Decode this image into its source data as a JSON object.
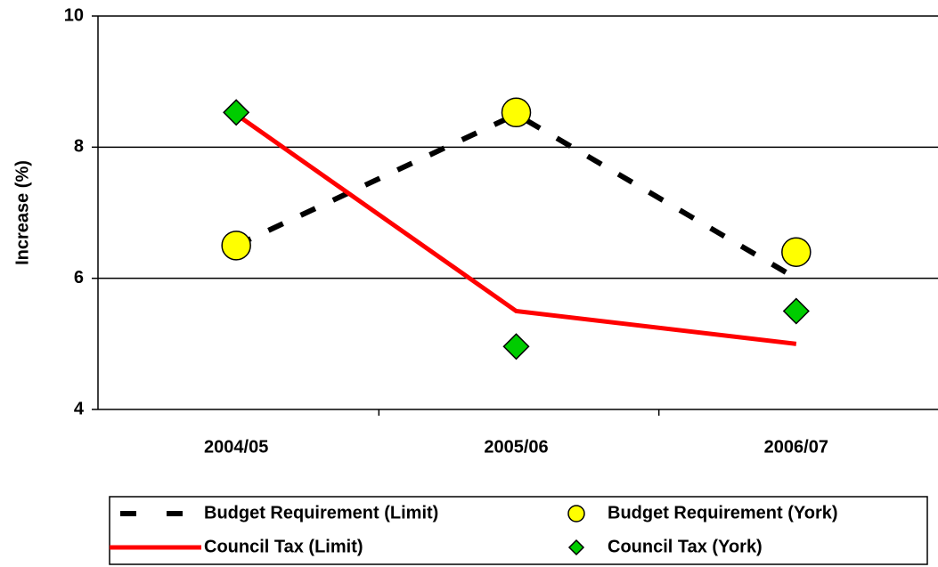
{
  "chart_data": {
    "type": "line",
    "ylabel": "Increase (%)",
    "categories": [
      "2004/05",
      "2005/06",
      "2006/07"
    ],
    "series": [
      {
        "name": "Budget Requirement (Limit)",
        "color": "#000000",
        "line": "dashed",
        "marker": "none",
        "values": [
          6.5,
          8.5,
          6.0
        ]
      },
      {
        "name": "Budget Requirement (York)",
        "color": "#ffff00",
        "line": "none",
        "marker": "circle",
        "values": [
          6.5,
          8.53,
          6.4
        ]
      },
      {
        "name": "Council Tax (Limit)",
        "color": "#ff0000",
        "line": "solid",
        "marker": "none",
        "values": [
          8.5,
          5.5,
          5.0
        ]
      },
      {
        "name": "Council Tax (York)",
        "color": "#00cc00",
        "line": "none",
        "marker": "diamond",
        "values": [
          8.53,
          4.96,
          5.5
        ]
      }
    ],
    "ylim": [
      4,
      10
    ],
    "yticks": [
      4,
      6,
      8,
      10
    ],
    "grid": true,
    "legend": "bottom"
  }
}
